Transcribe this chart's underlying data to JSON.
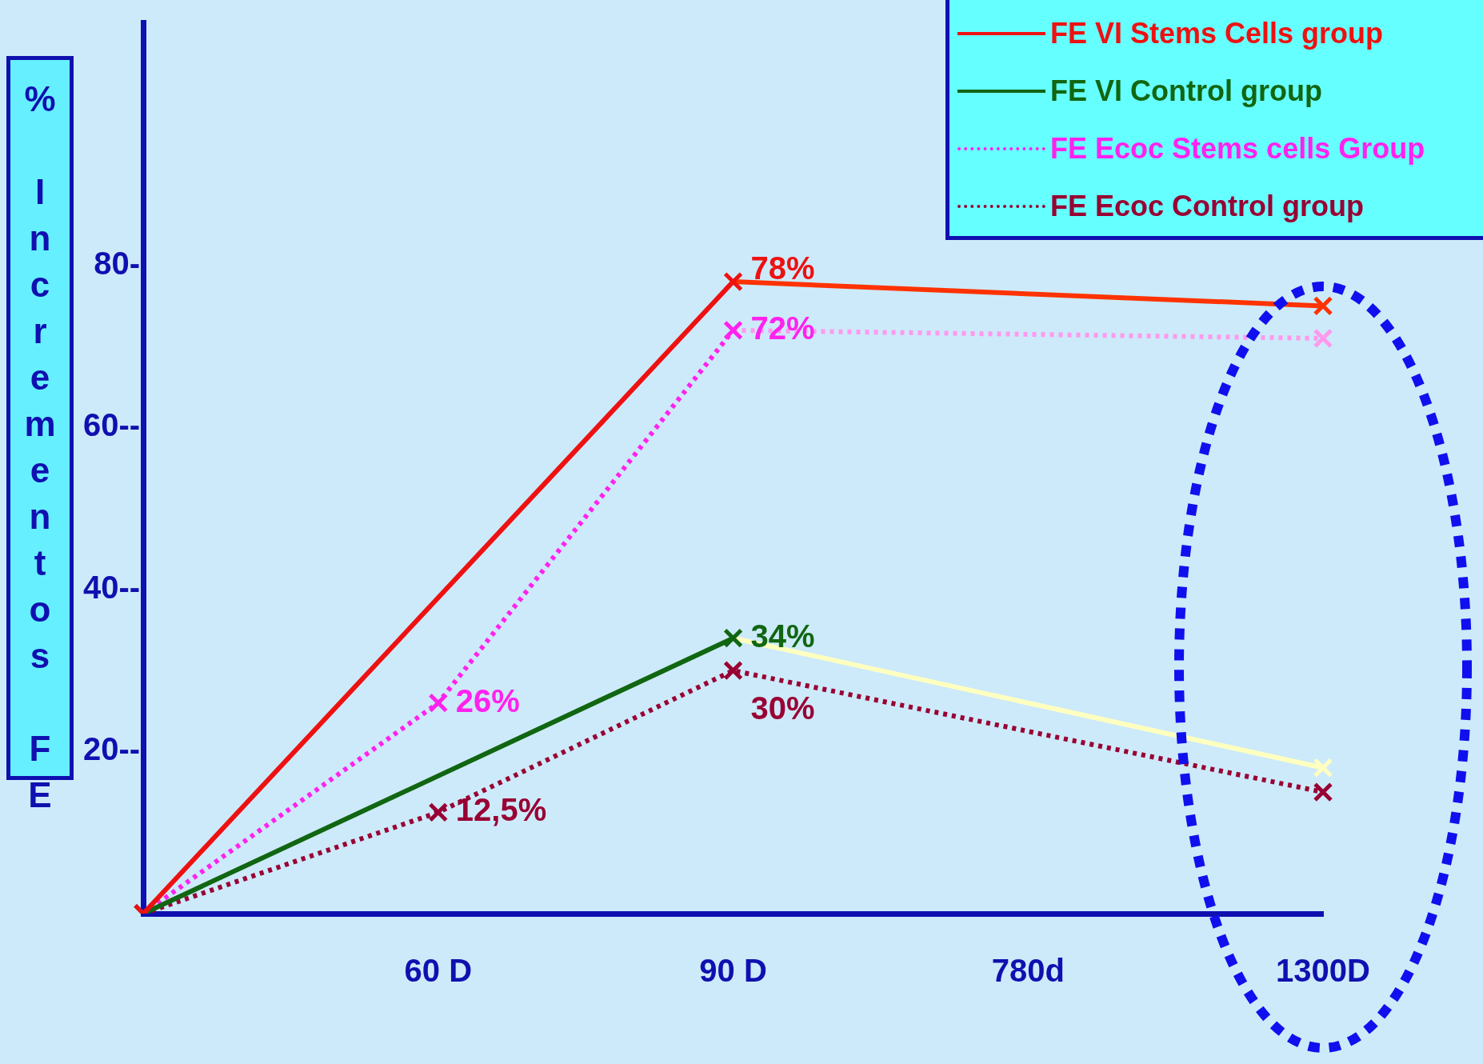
{
  "chart_data": {
    "type": "line",
    "ylabel": "% Incrementos FE",
    "categories": [
      null,
      "60 D",
      "90 D",
      "780d",
      "1300D"
    ],
    "ylim": [
      0,
      110
    ],
    "yticks": [
      {
        "value": 20,
        "label": "20--"
      },
      {
        "value": 40,
        "label": "40--"
      },
      {
        "value": 60,
        "label": "60--"
      },
      {
        "value": 80,
        "label": "80-"
      }
    ],
    "grid": false,
    "legend": "top right",
    "marker": "cross",
    "series": [
      {
        "name": "FE VI  Stems Cells group",
        "color": "#ee1111",
        "line_style": "solid",
        "colors": [
          "#ee1111",
          "#ee1111",
          "#ee1111",
          "#ff3300",
          "#ff3300"
        ],
        "values": [
          0,
          null,
          78,
          null,
          75
        ],
        "value_labels": [
          null,
          null,
          "78%",
          null,
          null
        ]
      },
      {
        "name": "FE VI Control group",
        "color": "#116611",
        "line_style": "solid",
        "colors": [
          "#116611",
          "#116611",
          "#116611",
          "#ffffc0",
          "#ffffc0"
        ],
        "values": [
          0,
          null,
          34,
          null,
          18
        ],
        "value_labels": [
          null,
          null,
          "34%",
          null,
          null
        ]
      },
      {
        "name": "FE Ecoc Stems cells Group",
        "color": "#ff22ee",
        "line_style": "dotted",
        "colors": [
          "#ff22ee",
          "#ff22ee",
          "#ff22ee",
          "#ff99ee",
          "#ff99ee"
        ],
        "values": [
          0,
          26,
          72,
          null,
          71
        ],
        "value_labels": [
          null,
          "26%",
          "72%",
          null,
          null
        ]
      },
      {
        "name": "FE Ecoc Control group",
        "color": "#990033",
        "line_style": "dotted",
        "colors": [
          "#990033",
          "#990033",
          "#990033",
          "#990033",
          "#990033"
        ],
        "values": [
          0,
          12.5,
          30,
          null,
          15
        ],
        "value_labels": [
          null,
          "12,5%",
          "30%",
          null,
          null
        ]
      }
    ]
  }
}
